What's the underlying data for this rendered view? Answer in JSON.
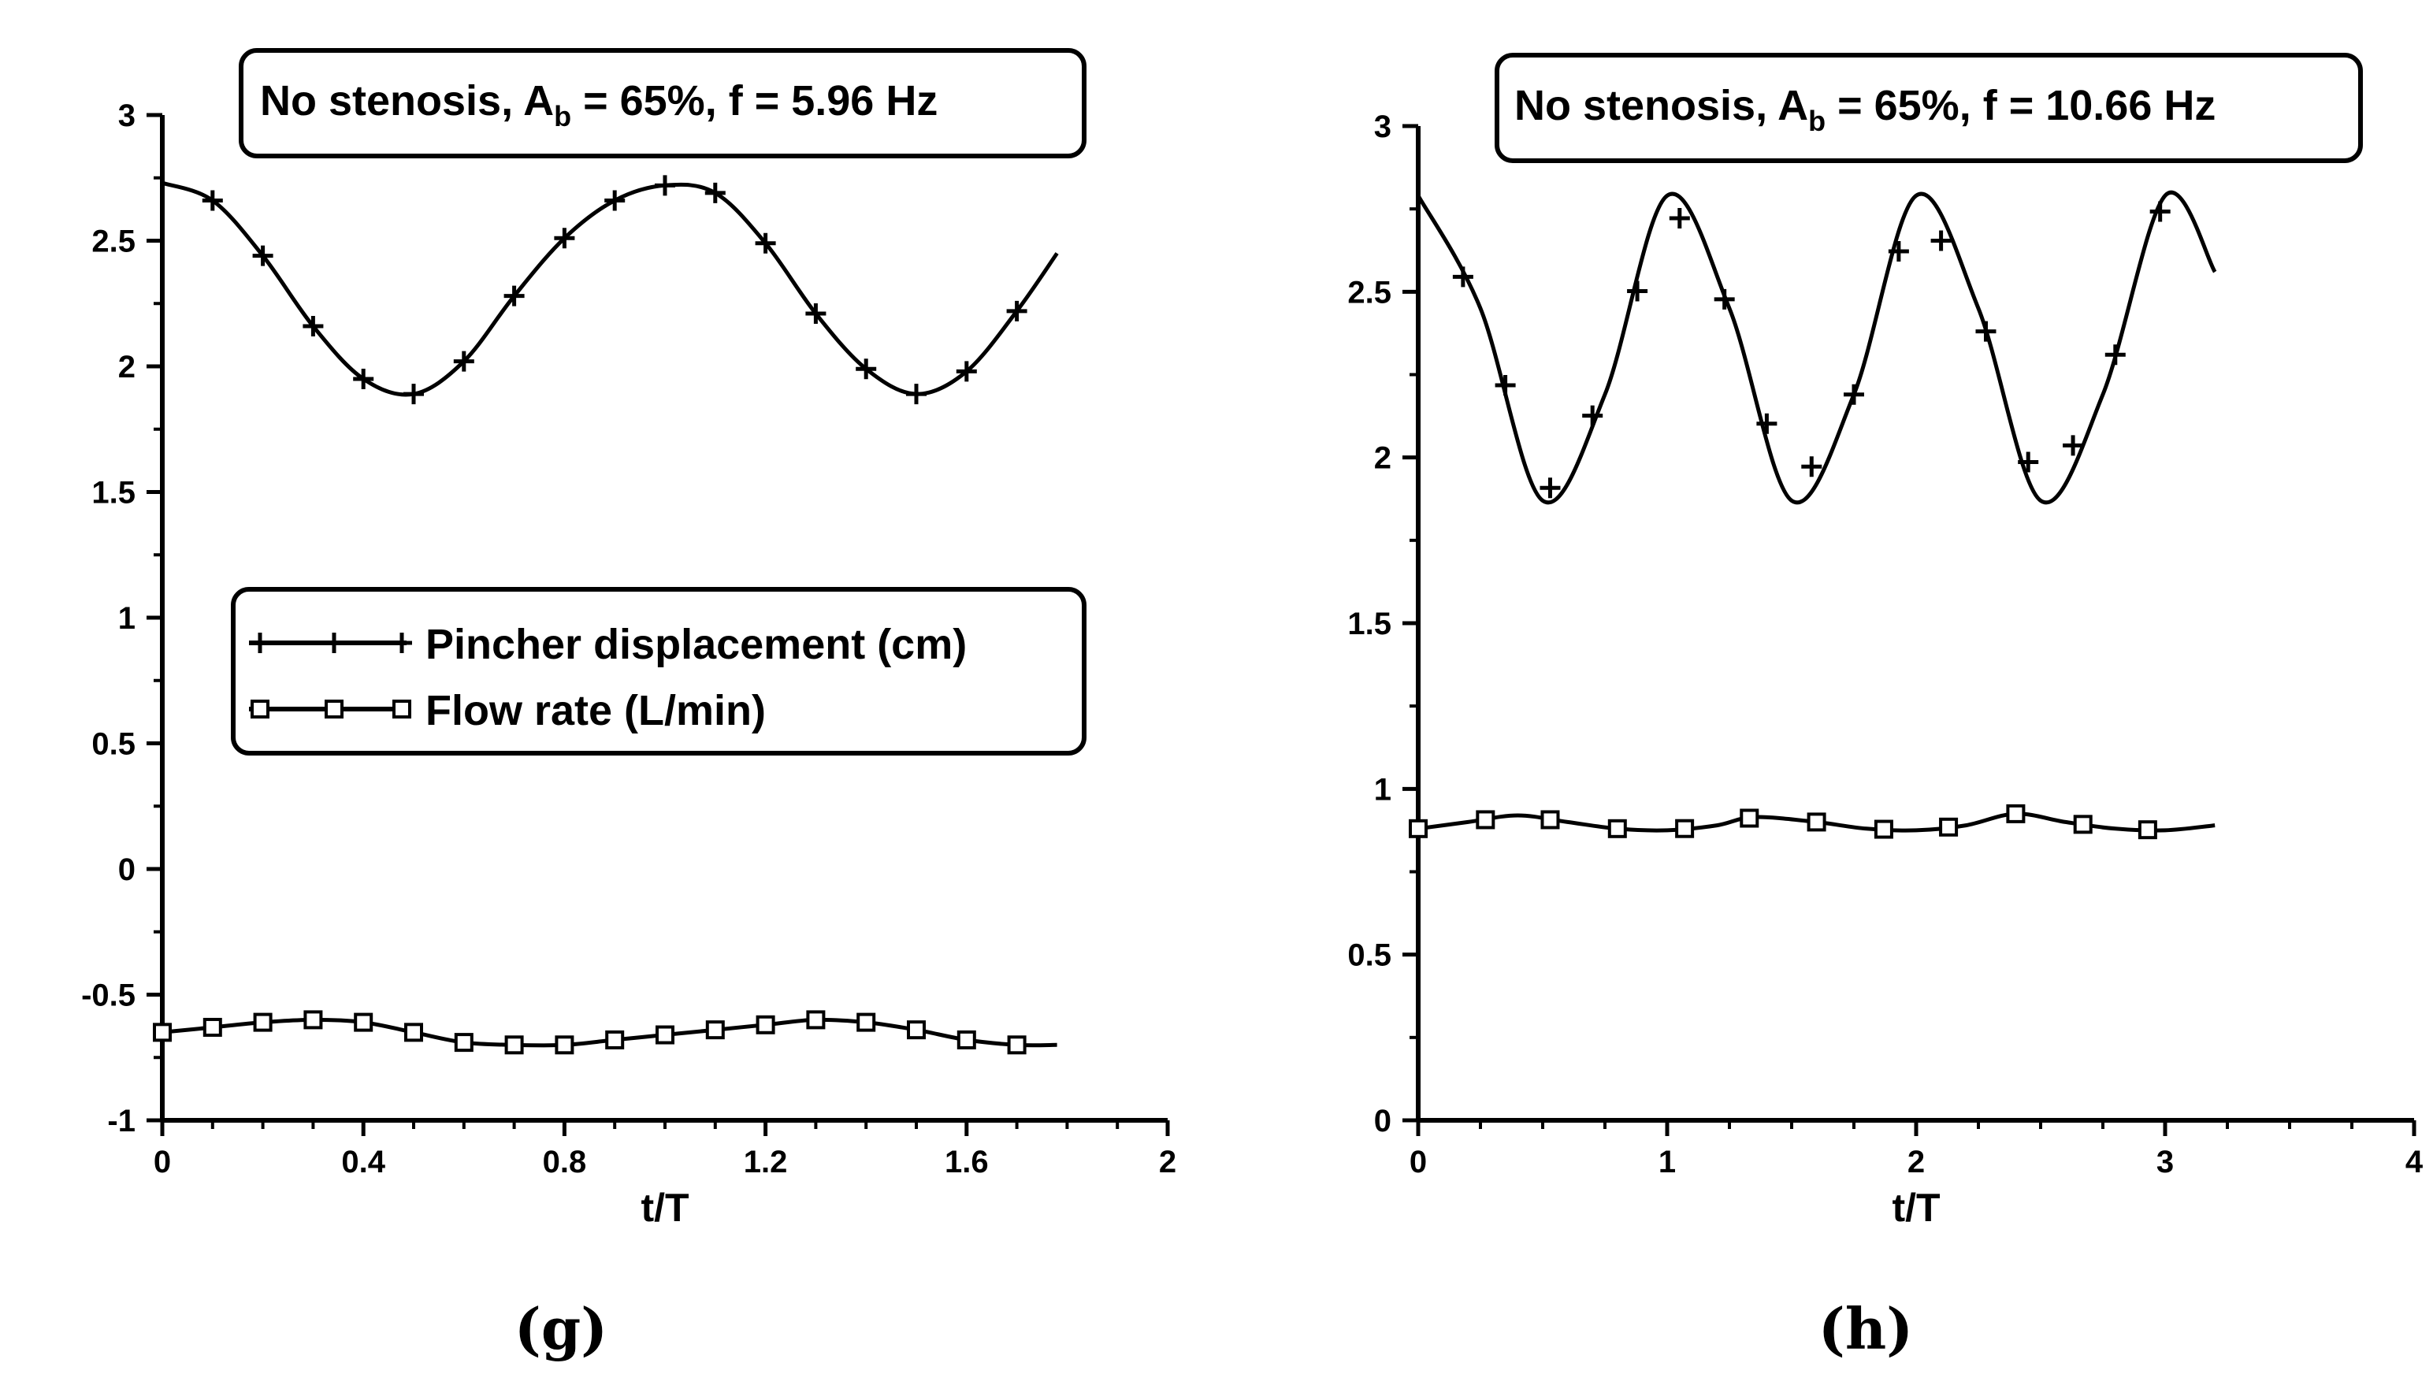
{
  "chart_data": [
    {
      "type": "line",
      "panel_label": "(g)",
      "title": {
        "prefix": "No stenosis, A",
        "subscript": "b",
        "suffix": " = 65%, f = 5.96 Hz"
      },
      "xlabel": "t/T",
      "ylabel": "",
      "xlim": [
        0,
        2
      ],
      "ylim": [
        -1,
        3
      ],
      "xticks": [
        "0",
        "0.4",
        "0.8",
        "1.2",
        "1.6",
        "2"
      ],
      "yticks": [
        "-1",
        "-0.5",
        "0",
        "0.5",
        "1",
        "1.5",
        "2",
        "2.5",
        "3"
      ],
      "legend": {
        "position": "center-left",
        "entries": [
          "Pincher displacement (cm)",
          "Flow rate (L/min)"
        ]
      },
      "series": [
        {
          "name": "Pincher displacement (cm)",
          "marker": "plus",
          "x": [
            0,
            0.1,
            0.2,
            0.3,
            0.4,
            0.5,
            0.6,
            0.7,
            0.8,
            0.9,
            1.0,
            1.1,
            1.2,
            1.3,
            1.4,
            1.5,
            1.6,
            1.7,
            1.78
          ],
          "y": [
            2.73,
            2.66,
            2.44,
            2.16,
            1.95,
            1.89,
            2.02,
            2.28,
            2.51,
            2.66,
            2.72,
            2.69,
            2.49,
            2.21,
            1.99,
            1.89,
            1.98,
            2.22,
            2.45
          ],
          "marker_x": [
            0.1,
            0.2,
            0.3,
            0.4,
            0.5,
            0.6,
            0.7,
            0.8,
            0.9,
            1.0,
            1.1,
            1.2,
            1.3,
            1.4,
            1.5,
            1.6,
            1.7
          ]
        },
        {
          "name": "Flow rate (L/min)",
          "marker": "square",
          "x": [
            0,
            0.1,
            0.2,
            0.3,
            0.4,
            0.5,
            0.6,
            0.7,
            0.8,
            0.9,
            1.0,
            1.1,
            1.2,
            1.3,
            1.4,
            1.5,
            1.6,
            1.7,
            1.78
          ],
          "y": [
            -0.65,
            -0.63,
            -0.61,
            -0.6,
            -0.61,
            -0.65,
            -0.69,
            -0.7,
            -0.7,
            -0.68,
            -0.66,
            -0.64,
            -0.62,
            -0.6,
            -0.61,
            -0.64,
            -0.68,
            -0.7,
            -0.7
          ],
          "marker_x": [
            0,
            0.1,
            0.2,
            0.3,
            0.4,
            0.5,
            0.6,
            0.7,
            0.8,
            0.9,
            1.0,
            1.1,
            1.2,
            1.3,
            1.4,
            1.5,
            1.6,
            1.7
          ]
        }
      ]
    },
    {
      "type": "line",
      "panel_label": "(h)",
      "title": {
        "prefix": "No stenosis, A",
        "subscript": "b",
        "suffix": " = 65%, f = 10.66 Hz"
      },
      "xlabel": "t/T",
      "ylabel": "",
      "xlim": [
        0,
        4
      ],
      "ylim": [
        0,
        3
      ],
      "xticks": [
        "0",
        "1",
        "2",
        "3",
        "4"
      ],
      "yticks": [
        "0",
        "0.5",
        "1",
        "1.5",
        "2",
        "2.5",
        "3"
      ],
      "series": [
        {
          "name": "Pincher displacement (cm)",
          "marker": "plus",
          "x": [
            0,
            0.25,
            0.5,
            0.75,
            1.0,
            1.25,
            1.5,
            1.75,
            2.0,
            2.25,
            2.5,
            2.75,
            3.0,
            3.2
          ],
          "y": [
            2.79,
            2.45,
            1.87,
            2.19,
            2.79,
            2.45,
            1.87,
            2.19,
            2.79,
            2.45,
            1.87,
            2.19,
            2.79,
            2.56
          ],
          "marker_x": [
            0.18,
            0.35,
            0.53,
            0.7,
            0.88,
            1.05,
            1.23,
            1.4,
            1.58,
            1.75,
            1.93,
            2.1,
            2.28,
            2.45,
            2.63,
            2.8,
            2.98
          ]
        },
        {
          "name": "Flow rate (L/min)",
          "marker": "square",
          "x": [
            0,
            0.2,
            0.4,
            0.6,
            0.8,
            1.0,
            1.2,
            1.35,
            1.6,
            1.8,
            2.0,
            2.2,
            2.4,
            2.6,
            2.8,
            3.0,
            3.2
          ],
          "y": [
            0.88,
            0.9,
            0.92,
            0.9,
            0.88,
            0.875,
            0.89,
            0.915,
            0.9,
            0.88,
            0.875,
            0.89,
            0.925,
            0.9,
            0.88,
            0.875,
            0.89
          ],
          "marker_x": [
            0,
            0.27,
            0.53,
            0.8,
            1.07,
            1.33,
            1.6,
            1.87,
            2.13,
            2.4,
            2.67,
            2.93
          ]
        }
      ]
    }
  ]
}
